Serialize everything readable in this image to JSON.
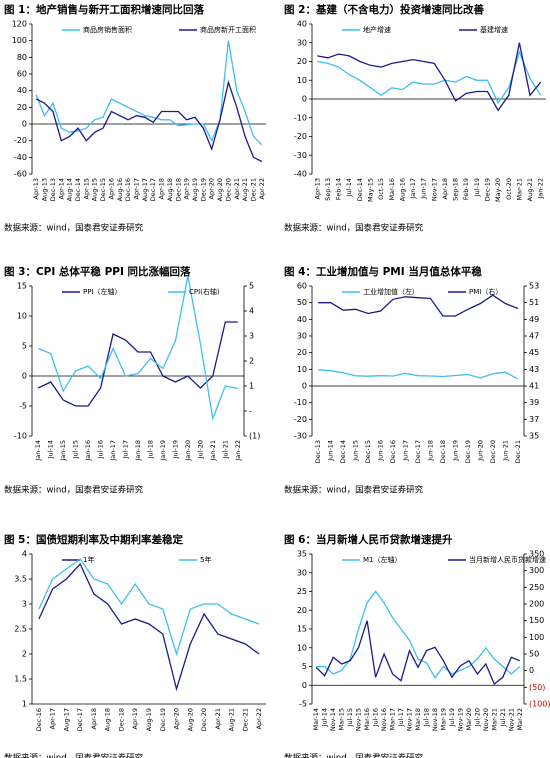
{
  "chart_data": [
    {
      "type": "line",
      "title": "图 1：地产销售与新开工面积增速同比回落",
      "source": "数据来源：wind，国泰君安证券研究",
      "categories": [
        "Apr-13",
        "Aug-13",
        "Dec-13",
        "Apr-14",
        "Aug-14",
        "Dec-14",
        "Apr-15",
        "Aug-15",
        "Dec-15",
        "Apr-16",
        "Aug-16",
        "Dec-16",
        "Apr-17",
        "Aug-17",
        "Dec-17",
        "Apr-18",
        "Aug-18",
        "Dec-18",
        "Apr-19",
        "Aug-19",
        "Dec-19",
        "Apr-20",
        "Aug-20",
        "Dec-20",
        "Apr-21",
        "Aug-21",
        "Dec-21",
        "Apr-22"
      ],
      "series": [
        {
          "name": "商品房销售面积",
          "color": "#3fbfef",
          "values": [
            35,
            10,
            25,
            -5,
            -10,
            -8,
            -5,
            5,
            8,
            30,
            25,
            20,
            15,
            10,
            8,
            5,
            5,
            -2,
            -1,
            0,
            0,
            -20,
            5,
            100,
            40,
            15,
            -15,
            -25
          ]
        },
        {
          "name": "商品房新开工面积",
          "color": "#1a1a8c",
          "values": [
            30,
            25,
            15,
            -20,
            -15,
            -5,
            -20,
            -10,
            -5,
            15,
            10,
            5,
            10,
            8,
            2,
            15,
            15,
            15,
            5,
            8,
            -5,
            -30,
            5,
            50,
            20,
            -15,
            -40,
            -45
          ]
        }
      ],
      "ylim": [
        -60,
        120
      ],
      "yticks": [
        -60,
        -40,
        -20,
        0,
        20,
        40,
        60,
        80,
        100,
        120
      ]
    },
    {
      "type": "line",
      "title": "图 2：基建（不含电力）投资增速同比改善",
      "source": "数据来源：wind，国泰君安证券研究",
      "categories": [
        "Apr-13",
        "Sep-13",
        "Feb-14",
        "Jul-14",
        "Dec-14",
        "May-15",
        "Oct-15",
        "Mar-16",
        "Aug-16",
        "Jan-17",
        "Jun-17",
        "Nov-17",
        "Apr-18",
        "Sep-18",
        "Feb-19",
        "Jul-19",
        "Dec-19",
        "May-20",
        "Oct-20",
        "Mar-21",
        "Aug-21",
        "Jan-22"
      ],
      "series": [
        {
          "name": "地产增速",
          "color": "#3fbfef",
          "values": [
            20,
            19,
            17,
            13,
            10,
            6,
            2,
            6,
            5,
            9,
            8,
            8,
            10,
            9,
            12,
            10,
            10,
            -2,
            6,
            25,
            11,
            2
          ]
        },
        {
          "name": "基建增速",
          "color": "#1a1a8c",
          "values": [
            23,
            22,
            24,
            23,
            20,
            18,
            17,
            19,
            20,
            21,
            20,
            19,
            10,
            -1,
            3,
            4,
            4,
            -6,
            2,
            30,
            2,
            9
          ]
        }
      ],
      "ylim": [
        -40,
        40
      ],
      "yticks": [
        -40,
        -30,
        -20,
        -10,
        0,
        10,
        20,
        30,
        40
      ]
    },
    {
      "type": "line",
      "title": "图 3：CPI 总体平稳 PPI 同比涨幅回落",
      "source": "数据来源：wind，国泰君安证券研究",
      "categories": [
        "Jan-14",
        "Jul-14",
        "Jan-15",
        "Jul-15",
        "Jan-16",
        "Jul-16",
        "Jan-17",
        "Jul-17",
        "Jan-18",
        "Jul-18",
        "Jan-19",
        "Jul-19",
        "Jan-20",
        "Jul-20",
        "Jan-21",
        "Jul-21",
        "Jan-22"
      ],
      "series": [
        {
          "name": "PPI（左轴）",
          "color": "#1a1a8c",
          "values": [
            -2,
            -1,
            -4,
            -5,
            -5,
            -2,
            7,
            6,
            4,
            4,
            0,
            -1,
            0,
            -2,
            0,
            9,
            9
          ]
        },
        {
          "name": "CPI(右轴)",
          "color": "#3fbfef",
          "axis": "y2",
          "values": [
            2.5,
            2.3,
            0.8,
            1.6,
            1.8,
            1.3,
            2.5,
            1.4,
            1.5,
            2.1,
            1.7,
            2.8,
            5.4,
            2.7,
            -0.3,
            1.0,
            0.9
          ]
        }
      ],
      "ylim": [
        -10,
        15
      ],
      "yticks": [
        -10,
        -5,
        0,
        5,
        10,
        15
      ],
      "y2lim": [
        -1,
        5
      ],
      "y2ticks": [
        {
          "value": -1,
          "label": "(1)"
        },
        {
          "value": 0,
          "label": "-"
        },
        1,
        2,
        3,
        4,
        5
      ]
    },
    {
      "type": "line",
      "title": "图 4：工业增加值与 PMI 当月值总体平稳",
      "source": "数据来源：wind，国泰君安证券研究",
      "categories": [
        "Dec-13",
        "Jun-14",
        "Dec-14",
        "Jun-15",
        "Dec-15",
        "Jun-16",
        "Dec-16",
        "Jun-17",
        "Dec-17",
        "Jun-18",
        "Dec-18",
        "Jun-19",
        "Dec-19",
        "Jun-20",
        "Dec-20",
        "Jun-21",
        "Dec-21"
      ],
      "series": [
        {
          "name": "工业增加值（左）",
          "color": "#3fbfef",
          "values": [
            9.7,
            9.2,
            7.9,
            6.1,
            5.9,
            6.2,
            6.0,
            7.6,
            6.2,
            6.0,
            5.7,
            6.3,
            6.9,
            4.8,
            7.3,
            8.3,
            4.3
          ]
        },
        {
          "name": "PMI（右）",
          "color": "#1a1a8c",
          "axis": "y2",
          "values": [
            51,
            51,
            50.1,
            50.2,
            49.7,
            50,
            51.4,
            51.7,
            51.6,
            51.5,
            49.4,
            49.4,
            50.2,
            50.9,
            51.9,
            50.9,
            50.3
          ]
        }
      ],
      "ylim": [
        -30,
        60
      ],
      "yticks": [
        -30,
        -20,
        -10,
        0,
        10,
        20,
        30,
        40,
        50,
        60
      ],
      "y2lim": [
        35,
        53
      ],
      "y2ticks": [
        35,
        37,
        39,
        41,
        43,
        45,
        47,
        49,
        51,
        53
      ]
    },
    {
      "type": "line",
      "title": "图 5：国债短期利率及中期利率差稳定",
      "source": "数据来源：wind，国泰君安证券研究",
      "categories": [
        "Dec-16",
        "Apr-17",
        "Aug-17",
        "Dec-17",
        "Apr-18",
        "Aug-18",
        "Dec-18",
        "Apr-19",
        "Aug-19",
        "Dec-19",
        "Apr-20",
        "Aug-20",
        "Dec-20",
        "Apr-21",
        "Aug-21",
        "Dec-21",
        "Apr-22"
      ],
      "series": [
        {
          "name": "1年",
          "color": "#1a1a8c",
          "values": [
            2.7,
            3.3,
            3.5,
            3.8,
            3.2,
            3.0,
            2.6,
            2.7,
            2.6,
            2.4,
            1.3,
            2.2,
            2.8,
            2.4,
            2.3,
            2.2,
            2.0
          ]
        },
        {
          "name": "5年",
          "color": "#3fbfef",
          "values": [
            2.9,
            3.5,
            3.7,
            3.9,
            3.5,
            3.4,
            3.0,
            3.4,
            3.0,
            2.9,
            2.0,
            2.9,
            3.0,
            3.0,
            2.8,
            2.7,
            2.6
          ]
        }
      ],
      "ylim": [
        1,
        4
      ],
      "yticks": [
        1,
        1.5,
        2,
        2.5,
        3,
        3.5,
        4
      ]
    },
    {
      "type": "line",
      "title": "图 6：当月新增人民币贷款增速提升",
      "source": "数据来源：wind，国泰君安证券研究",
      "categories": [
        "Mar-14",
        "Jul-14",
        "Nov-14",
        "Mar-15",
        "Jul-15",
        "Nov-15",
        "Mar-16",
        "Jul-16",
        "Nov-16",
        "Mar-17",
        "Jul-17",
        "Nov-17",
        "Mar-18",
        "Jul-18",
        "Nov-18",
        "Mar-19",
        "Jul-19",
        "Nov-19",
        "Mar-20",
        "Jul-20",
        "Nov-20",
        "Mar-21",
        "Jul-21",
        "Nov-21",
        "Mar-22"
      ],
      "series": [
        {
          "name": "M1（左轴）",
          "color": "#3fbfef",
          "values": [
            5,
            5,
            3,
            4,
            7,
            15,
            22,
            25,
            22,
            18,
            15,
            12,
            7,
            6,
            2,
            5,
            3,
            4,
            5,
            7,
            10,
            7,
            5,
            3,
            5
          ]
        },
        {
          "name": "当月新增人民币贷款增速",
          "color": "#1a1a8c",
          "axis": "y2",
          "values": [
            10,
            -15,
            40,
            20,
            30,
            70,
            150,
            -20,
            50,
            -10,
            -30,
            60,
            10,
            60,
            70,
            30,
            -20,
            15,
            30,
            -10,
            20,
            -40,
            -20,
            40,
            30
          ]
        }
      ],
      "ylim": [
        -5,
        35
      ],
      "yticks": [
        -5,
        0,
        5,
        10,
        15,
        20,
        25,
        30,
        35
      ],
      "y2lim": [
        -100,
        350
      ],
      "y2ticks": [
        {
          "value": -100,
          "label": "(100)"
        },
        {
          "value": -50,
          "label": "(50)"
        },
        0,
        50,
        100,
        150,
        200,
        250,
        300,
        350
      ],
      "y2_negative_label_color": "#c00000"
    }
  ]
}
